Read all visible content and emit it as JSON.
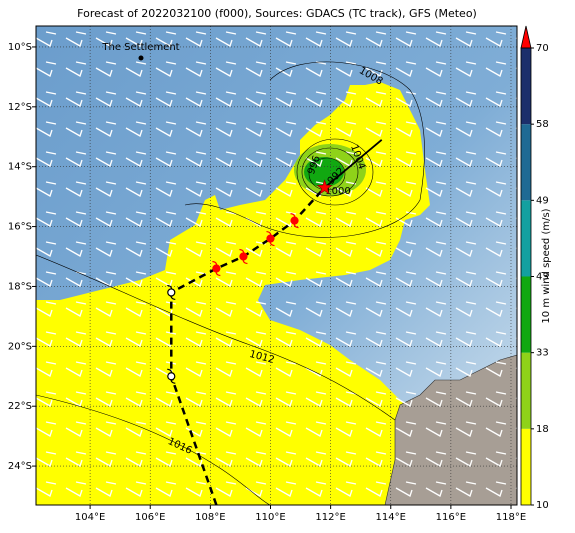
{
  "chart_data": {
    "type": "map",
    "title": "Forecast of 2022032100 (f000), Sources: GDACS (TC track), GFS (Meteo)",
    "xlim": [
      102.2,
      118.2
    ],
    "ylim": [
      -25.3,
      -9.3
    ],
    "xticks": [
      {
        "value": 104,
        "label": "104°E"
      },
      {
        "value": 106,
        "label": "106°E"
      },
      {
        "value": 108,
        "label": "108°E"
      },
      {
        "value": 110,
        "label": "110°E"
      },
      {
        "value": 112,
        "label": "112°E"
      },
      {
        "value": 114,
        "label": "114°E"
      },
      {
        "value": 116,
        "label": "116°E"
      },
      {
        "value": 118,
        "label": "118°E"
      }
    ],
    "yticks": [
      {
        "value": -10,
        "label": "10°S"
      },
      {
        "value": -12,
        "label": "12°S"
      },
      {
        "value": -14,
        "label": "14°S"
      },
      {
        "value": -16,
        "label": "16°S"
      },
      {
        "value": -18,
        "label": "18°S"
      },
      {
        "value": -20,
        "label": "20°S"
      },
      {
        "value": -22,
        "label": "22°S"
      },
      {
        "value": -24,
        "label": "24°S"
      }
    ],
    "grid": true,
    "place": "The Settlement",
    "isobar_labels": [
      1008,
      1012,
      1016,
      1004,
      1000,
      996,
      992
    ],
    "track": {
      "lon": [
        108.2,
        106.7,
        106.7,
        108.2,
        109.1,
        110.0,
        110.8,
        111.8
      ],
      "lat": [
        -25.3,
        -21.0,
        -18.2,
        -17.4,
        -17.0,
        -16.4,
        -15.8,
        -14.7
      ]
    },
    "forecast": {
      "lon": [
        111.8,
        113.7
      ],
      "lat": [
        -14.7,
        -13.1
      ]
    },
    "colorbar": {
      "label": "10 m wind speed (m/s)",
      "levels": [
        10,
        18,
        33,
        43,
        49,
        58,
        70
      ],
      "colors": [
        "#ffff00",
        "#8fd219",
        "#11a811",
        "#13a0a0",
        "#1f6a94",
        "#1c2f6b"
      ],
      "extend_color": "#ff0000"
    }
  }
}
